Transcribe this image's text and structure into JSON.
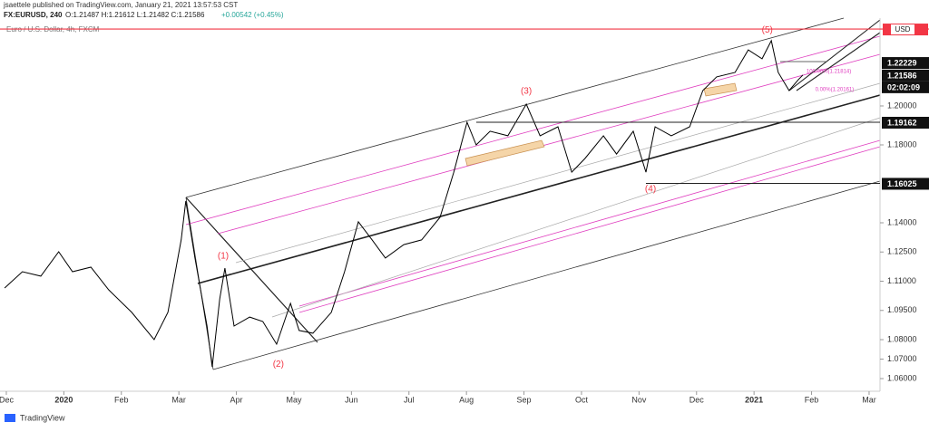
{
  "header": {
    "publisher": "jsaettele published on TradingView.com, January 21, 2021 13:57:53 CST",
    "symbol": "FX:EURUSD, 240",
    "ohlc": "O:1.21487 H:1.21612 L:1.21482 C:1.21586",
    "change": "+0.00542 (+0.45%)"
  },
  "footer": "TradingView",
  "chart_data": {
    "type": "line",
    "title": "Euro / U.S. Dollar, 4h, FXCM",
    "color": "#000000",
    "x": [
      -0.03,
      0.28,
      0.6,
      0.91,
      1.15,
      1.47,
      1.78,
      2.18,
      2.57,
      2.81,
      3.04,
      3.12,
      3.28,
      3.49,
      3.58,
      3.71,
      3.8,
      3.96,
      4.23,
      4.46,
      4.7,
      4.94,
      5.09,
      5.33,
      5.65,
      5.88,
      6.12,
      6.36,
      6.59,
      6.91,
      7.22,
      7.54,
      7.78,
      8.01,
      8.17,
      8.41,
      8.72,
      9.04,
      9.28,
      9.59,
      9.83,
      10.06,
      10.38,
      10.61,
      10.9,
      11.12,
      11.28,
      11.56,
      11.88,
      12.11,
      12.35,
      12.67,
      12.9,
      13.14,
      13.3,
      13.42,
      13.61,
      13.77,
      13.85
    ],
    "values": [
      1.1065,
      1.1149,
      1.1126,
      1.1251,
      1.1149,
      1.1172,
      1.1056,
      1.094,
      1.08,
      1.094,
      1.1312,
      1.1512,
      1.1219,
      1.087,
      1.066,
      1.1009,
      1.1167,
      1.087,
      1.0916,
      1.0893,
      1.0777,
      1.0986,
      1.0847,
      1.0833,
      1.094,
      1.1149,
      1.1405,
      1.1312,
      1.1219,
      1.1288,
      1.1312,
      1.1428,
      1.166,
      1.1916,
      1.18,
      1.187,
      1.1847,
      1.2009,
      1.1847,
      1.1893,
      1.166,
      1.173,
      1.1847,
      1.1753,
      1.187,
      1.166,
      1.1893,
      1.1847,
      1.1893,
      1.2079,
      1.2149,
      1.2172,
      1.2288,
      1.2242,
      1.2335,
      1.2172,
      1.2079,
      1.2135,
      1.2159
    ],
    "xlim": [
      -0.11,
      15.19
    ],
    "xticks": [
      {
        "value": 0,
        "label": "Dec"
      },
      {
        "value": 1,
        "label": "2020"
      },
      {
        "value": 2,
        "label": "Feb"
      },
      {
        "value": 3,
        "label": "Mar"
      },
      {
        "value": 4,
        "label": "Apr"
      },
      {
        "value": 5,
        "label": "May"
      },
      {
        "value": 6,
        "label": "Jun"
      },
      {
        "value": 7,
        "label": "Jul"
      },
      {
        "value": 8,
        "label": "Aug"
      },
      {
        "value": 9,
        "label": "Sep"
      },
      {
        "value": 10,
        "label": "Oct"
      },
      {
        "value": 11,
        "label": "Nov"
      },
      {
        "value": 12,
        "label": "Dec"
      },
      {
        "value": 13,
        "label": "2021"
      },
      {
        "value": 14,
        "label": "Feb"
      },
      {
        "value": 15,
        "label": "Mar"
      }
    ],
    "ylim": [
      1.0535,
      1.2451
    ],
    "yticks": [
      {
        "value": 1.06,
        "label": "1.06000"
      },
      {
        "value": 1.07,
        "label": "1.07000"
      },
      {
        "value": 1.08,
        "label": "1.08000"
      },
      {
        "value": 1.095,
        "label": "1.09500"
      },
      {
        "value": 1.11,
        "label": "1.11000"
      },
      {
        "value": 1.125,
        "label": "1.12500"
      },
      {
        "value": 1.14,
        "label": "1.14000"
      },
      {
        "value": 1.18,
        "label": "1.18000"
      },
      {
        "value": 1.2,
        "label": "1.20000"
      }
    ],
    "hline": {
      "value": 1.2395,
      "color": "#f23645",
      "label": "USD"
    },
    "price_labels": [
      {
        "value": 1.22229,
        "label": "1.22229"
      },
      {
        "value": 1.21586,
        "label": "1.21586",
        "countdown": "02:02:09"
      },
      {
        "value": 1.19162,
        "label": "1.19162",
        "x0": 8.17
      },
      {
        "value": 1.16025,
        "label": "1.16025",
        "x0": 11.12
      }
    ],
    "annotations": [
      {
        "text": "(1)",
        "x": 3.77,
        "y": 1.1228,
        "color": "#f23645"
      },
      {
        "text": "(2)",
        "x": 4.73,
        "y": 1.0674,
        "color": "#f23645"
      },
      {
        "text": "(3)",
        "x": 9.04,
        "y": 1.2074,
        "color": "#f23645"
      },
      {
        "text": "(4)",
        "x": 11.2,
        "y": 1.1572,
        "color": "#f23645"
      },
      {
        "text": "(5)",
        "x": 13.23,
        "y": 1.239,
        "color": "#f23645"
      },
      {
        "text": "100.00%(1.21814)",
        "x": 14.3,
        "y": 1.2177,
        "color": "#e040c0"
      },
      {
        "text": "0.00%(1.20161)",
        "x": 14.4,
        "y": 1.2084,
        "color": "#e040c0"
      }
    ]
  }
}
